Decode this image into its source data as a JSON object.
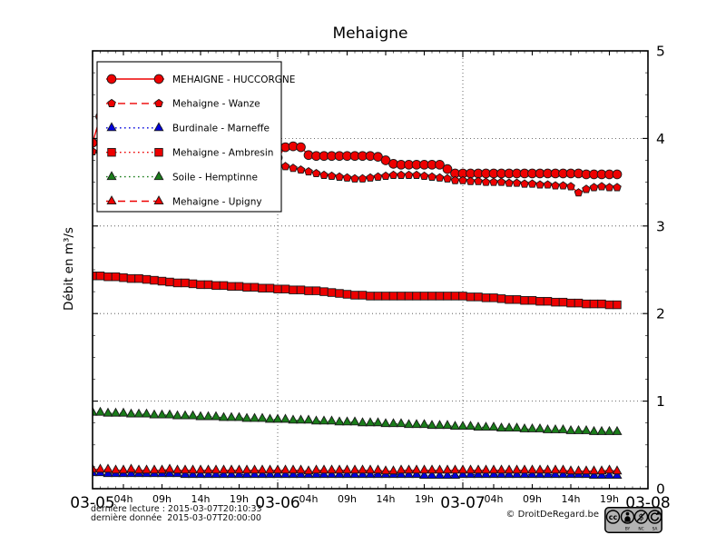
{
  "chart_data": {
    "type": "line",
    "title": "Mehaigne",
    "ylabel": "Débit en m³/s",
    "ylim": [
      0,
      5
    ],
    "yticks": [
      0,
      1,
      2,
      3,
      4,
      5
    ],
    "x_start": "2015-03-05T00:00",
    "x_unit": "hours",
    "x_range_hours": [
      0,
      72
    ],
    "grid": {
      "h_values": [
        1,
        2,
        3,
        4
      ],
      "v_hours": [
        24,
        48
      ],
      "style": "dotted"
    },
    "legend_position": "upper-left",
    "xticks": [
      {
        "hours": 0,
        "label": "03-05",
        "major": true
      },
      {
        "hours": 4,
        "label": "04h"
      },
      {
        "hours": 9,
        "label": "09h"
      },
      {
        "hours": 14,
        "label": "14h"
      },
      {
        "hours": 19,
        "label": "19h"
      },
      {
        "hours": 24,
        "label": "03-06",
        "major": true
      },
      {
        "hours": 28,
        "label": "04h"
      },
      {
        "hours": 33,
        "label": "09h"
      },
      {
        "hours": 38,
        "label": "14h"
      },
      {
        "hours": 43,
        "label": "19h"
      },
      {
        "hours": 48,
        "label": "03-07",
        "major": true
      },
      {
        "hours": 52,
        "label": "04h"
      },
      {
        "hours": 57,
        "label": "09h"
      },
      {
        "hours": 62,
        "label": "14h"
      },
      {
        "hours": 67,
        "label": "19h"
      },
      {
        "hours": 72,
        "label": "03-08",
        "major": true
      }
    ],
    "series": [
      {
        "name": "MEHAIGNE - HUCCORGNE",
        "color": "#ee0000",
        "line_style": "solid",
        "marker": "circle",
        "x_step_hours": 1,
        "values": [
          3.95,
          4.25,
          4.1,
          4.02,
          3.97,
          3.93,
          3.9,
          3.87,
          3.85,
          3.82,
          3.8,
          3.78,
          3.76,
          3.74,
          3.72,
          3.7,
          3.69,
          3.68,
          3.67,
          3.66,
          3.65,
          3.64,
          3.63,
          3.62,
          3.78,
          3.9,
          3.91,
          3.9,
          3.81,
          3.8,
          3.8,
          3.8,
          3.8,
          3.8,
          3.8,
          3.8,
          3.8,
          3.79,
          3.75,
          3.71,
          3.7,
          3.7,
          3.7,
          3.7,
          3.7,
          3.7,
          3.65,
          3.6,
          3.6,
          3.6,
          3.6,
          3.6,
          3.6,
          3.6,
          3.6,
          3.6,
          3.6,
          3.6,
          3.6,
          3.6,
          3.6,
          3.6,
          3.6,
          3.6,
          3.59,
          3.59,
          3.59,
          3.59,
          3.59
        ]
      },
      {
        "name": "Mehaigne - Wanze",
        "color": "#ee0000",
        "line_style": "dashed",
        "marker": "pentagon",
        "x_step_hours": 1,
        "values": [
          3.85,
          3.83,
          3.81,
          3.79,
          3.77,
          3.75,
          3.73,
          3.71,
          3.69,
          3.67,
          3.65,
          3.64,
          3.63,
          3.62,
          3.61,
          3.6,
          3.59,
          3.58,
          3.57,
          3.56,
          3.55,
          3.54,
          3.53,
          3.52,
          3.7,
          3.68,
          3.66,
          3.64,
          3.62,
          3.6,
          3.58,
          3.57,
          3.56,
          3.55,
          3.54,
          3.54,
          3.55,
          3.56,
          3.57,
          3.58,
          3.58,
          3.58,
          3.58,
          3.57,
          3.56,
          3.55,
          3.54,
          3.52,
          3.52,
          3.51,
          3.51,
          3.5,
          3.5,
          3.5,
          3.49,
          3.49,
          3.48,
          3.48,
          3.47,
          3.47,
          3.46,
          3.46,
          3.45,
          3.38,
          3.42,
          3.44,
          3.45,
          3.44,
          3.44
        ]
      },
      {
        "name": "Burdinale - Marneffe",
        "color": "#0000dd",
        "line_style": "dotted",
        "marker": "triangle",
        "x_step_hours": 1,
        "values": [
          0.18,
          0.18,
          0.17,
          0.17,
          0.17,
          0.17,
          0.17,
          0.17,
          0.17,
          0.17,
          0.17,
          0.17,
          0.16,
          0.16,
          0.16,
          0.16,
          0.16,
          0.16,
          0.16,
          0.16,
          0.16,
          0.16,
          0.16,
          0.16,
          0.16,
          0.16,
          0.16,
          0.16,
          0.16,
          0.16,
          0.16,
          0.16,
          0.16,
          0.16,
          0.16,
          0.16,
          0.16,
          0.16,
          0.16,
          0.16,
          0.16,
          0.16,
          0.16,
          0.15,
          0.15,
          0.15,
          0.15,
          0.15,
          0.16,
          0.16,
          0.16,
          0.16,
          0.16,
          0.16,
          0.16,
          0.16,
          0.16,
          0.16,
          0.16,
          0.16,
          0.16,
          0.16,
          0.16,
          0.16,
          0.16,
          0.15,
          0.15,
          0.15,
          0.15
        ]
      },
      {
        "name": "Mehaigne - Ambresin",
        "color": "#ee0000",
        "line_style": "dotted",
        "marker": "square",
        "x_step_hours": 1,
        "values": [
          2.43,
          2.43,
          2.42,
          2.42,
          2.41,
          2.4,
          2.4,
          2.39,
          2.38,
          2.37,
          2.36,
          2.35,
          2.35,
          2.34,
          2.33,
          2.33,
          2.32,
          2.32,
          2.31,
          2.31,
          2.3,
          2.3,
          2.29,
          2.29,
          2.28,
          2.28,
          2.27,
          2.27,
          2.26,
          2.26,
          2.25,
          2.24,
          2.23,
          2.22,
          2.21,
          2.21,
          2.2,
          2.2,
          2.2,
          2.2,
          2.2,
          2.2,
          2.2,
          2.2,
          2.2,
          2.2,
          2.2,
          2.2,
          2.2,
          2.19,
          2.19,
          2.18,
          2.18,
          2.17,
          2.16,
          2.16,
          2.15,
          2.15,
          2.14,
          2.14,
          2.13,
          2.13,
          2.12,
          2.12,
          2.11,
          2.11,
          2.11,
          2.1,
          2.1
        ]
      },
      {
        "name": "Soile - Hemptinne",
        "color": "#1a7d1a",
        "line_style": "dotted",
        "marker": "triangle",
        "x_step_hours": 1,
        "values": [
          0.87,
          0.87,
          0.86,
          0.86,
          0.86,
          0.85,
          0.85,
          0.85,
          0.84,
          0.84,
          0.84,
          0.83,
          0.83,
          0.83,
          0.82,
          0.82,
          0.82,
          0.81,
          0.81,
          0.81,
          0.8,
          0.8,
          0.8,
          0.79,
          0.79,
          0.79,
          0.78,
          0.78,
          0.78,
          0.77,
          0.77,
          0.77,
          0.76,
          0.76,
          0.76,
          0.75,
          0.75,
          0.75,
          0.74,
          0.74,
          0.74,
          0.73,
          0.73,
          0.73,
          0.72,
          0.72,
          0.72,
          0.71,
          0.71,
          0.71,
          0.7,
          0.7,
          0.7,
          0.69,
          0.69,
          0.69,
          0.68,
          0.68,
          0.68,
          0.67,
          0.67,
          0.67,
          0.66,
          0.66,
          0.66,
          0.65,
          0.65,
          0.65,
          0.65
        ]
      },
      {
        "name": "Mehaigne - Upigny",
        "color": "#ee0000",
        "line_style": "dashed",
        "marker": "triangle",
        "x_step_hours": 1,
        "values": [
          0.22,
          0.22,
          0.22,
          0.21,
          0.21,
          0.22,
          0.21,
          0.21,
          0.21,
          0.21,
          0.22,
          0.21,
          0.21,
          0.21,
          0.21,
          0.21,
          0.21,
          0.21,
          0.21,
          0.21,
          0.21,
          0.21,
          0.21,
          0.21,
          0.21,
          0.21,
          0.21,
          0.21,
          0.2,
          0.21,
          0.21,
          0.21,
          0.21,
          0.21,
          0.21,
          0.21,
          0.21,
          0.21,
          0.2,
          0.2,
          0.21,
          0.21,
          0.21,
          0.21,
          0.21,
          0.21,
          0.21,
          0.21,
          0.21,
          0.21,
          0.21,
          0.21,
          0.21,
          0.21,
          0.21,
          0.21,
          0.21,
          0.21,
          0.21,
          0.21,
          0.21,
          0.21,
          0.2,
          0.2,
          0.2,
          0.2,
          0.2,
          0.21,
          0.2
        ]
      }
    ]
  },
  "footer": {
    "last_reading": "dernière lecture : 2015-03-07T20:10:33",
    "last_data": "dernière donnée  2015-03-07T20:00:00",
    "copyright": "© DroitDeRegard.be",
    "license": {
      "cc_text": "cc",
      "labels": [
        "BY",
        "NC",
        "SA"
      ]
    }
  }
}
